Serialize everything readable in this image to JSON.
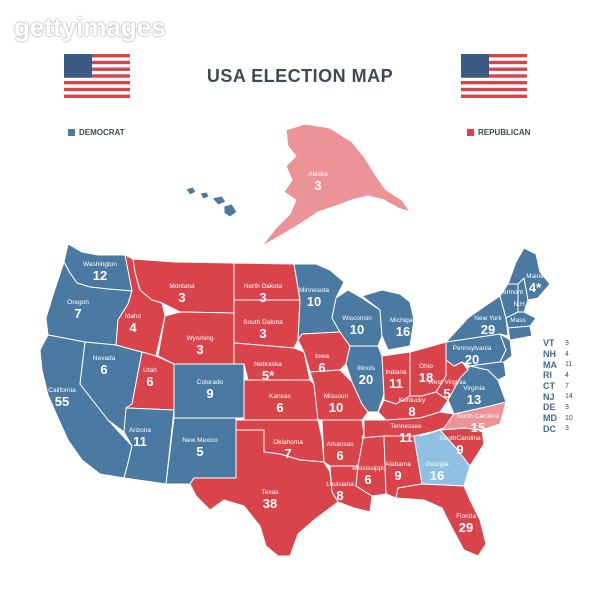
{
  "watermark": "gettyimages",
  "title": "USA ELECTION MAP",
  "legend": {
    "democrat": "DEMOCRAT",
    "republican": "REPUBLICAN"
  },
  "colors": {
    "democrat": "#4a79a1",
    "republican": "#d9444a",
    "lean_republican": "#eb9397",
    "lean_democrat": "#8fc1e3"
  },
  "states": {
    "washington": {
      "name": "Washington",
      "ev": "12",
      "party": "democrat"
    },
    "oregon": {
      "name": "Oregon",
      "ev": "7",
      "party": "democrat"
    },
    "california": {
      "name": "California",
      "ev": "55",
      "party": "democrat"
    },
    "nevada": {
      "name": "Nevada",
      "ev": "6",
      "party": "democrat"
    },
    "idaho": {
      "name": "Idaho",
      "ev": "4",
      "party": "republican"
    },
    "montana": {
      "name": "Montana",
      "ev": "3",
      "party": "republican"
    },
    "wyoming": {
      "name": "Wyoming",
      "ev": "3",
      "party": "republican"
    },
    "utah": {
      "name": "Utah",
      "ev": "6",
      "party": "republican"
    },
    "colorado": {
      "name": "Colorado",
      "ev": "9",
      "party": "democrat"
    },
    "arizona": {
      "name": "Arizona",
      "ev": "11",
      "party": "democrat"
    },
    "new_mexico": {
      "name": "New Mexico",
      "ev": "5",
      "party": "democrat"
    },
    "north_dakota": {
      "name": "North Dakota",
      "ev": "3",
      "party": "republican"
    },
    "south_dakota": {
      "name": "South Dakota",
      "ev": "3",
      "party": "republican"
    },
    "nebraska": {
      "name": "Nebraska",
      "ev": "5*",
      "party": "republican"
    },
    "kansas": {
      "name": "Kansas",
      "ev": "6",
      "party": "republican"
    },
    "oklahoma": {
      "name": "Oklahoma",
      "ev": "7",
      "party": "republican"
    },
    "texas": {
      "name": "Texas",
      "ev": "38",
      "party": "republican"
    },
    "minnesota": {
      "name": "Minnesota",
      "ev": "10",
      "party": "democrat"
    },
    "iowa": {
      "name": "Iowa",
      "ev": "6",
      "party": "republican"
    },
    "missouri": {
      "name": "Missouri",
      "ev": "10",
      "party": "republican"
    },
    "arkansas": {
      "name": "Arkansas",
      "ev": "6",
      "party": "republican"
    },
    "louisiana": {
      "name": "Louisiana",
      "ev": "8",
      "party": "republican"
    },
    "wisconsin": {
      "name": "Wisconsin",
      "ev": "10",
      "party": "democrat"
    },
    "illinois": {
      "name": "Illinois",
      "ev": "20",
      "party": "democrat"
    },
    "michigan": {
      "name": "Michigan",
      "ev": "16",
      "party": "democrat"
    },
    "indiana": {
      "name": "Indiana",
      "ev": "11",
      "party": "republican"
    },
    "ohio": {
      "name": "Ohio",
      "ev": "18",
      "party": "republican"
    },
    "kentucky": {
      "name": "Kentucky",
      "ev": "8",
      "party": "republican"
    },
    "tennessee": {
      "name": "Tennessee",
      "ev": "11",
      "party": "republican"
    },
    "mississippi": {
      "name": "Mississippi",
      "ev": "6",
      "party": "republican"
    },
    "alabama": {
      "name": "Alabama",
      "ev": "9",
      "party": "republican"
    },
    "georgia": {
      "name": "Georgia",
      "ev": "16",
      "party": "lean_democrat"
    },
    "florida": {
      "name": "Florida",
      "ev": "29",
      "party": "republican"
    },
    "south_carolina": {
      "name": "SouthCarolina",
      "ev": "9",
      "party": "republican"
    },
    "north_carolina": {
      "name": "North Carolina",
      "ev": "15",
      "party": "lean_republican"
    },
    "virginia": {
      "name": "Virginia",
      "ev": "13",
      "party": "democrat"
    },
    "west_virginia": {
      "name": "West Virginia",
      "ev": "5",
      "party": "republican"
    },
    "pennsylvania": {
      "name": "Pennsylvania",
      "ev": "20",
      "party": "democrat"
    },
    "new_york": {
      "name": "New York",
      "ev": "29",
      "party": "democrat"
    },
    "vermont": {
      "name": "Vermont",
      "ev": "",
      "party": "democrat"
    },
    "nh": {
      "name": "N.H.",
      "ev": "",
      "party": "democrat"
    },
    "mass": {
      "name": "Mass",
      "ev": "",
      "party": "democrat"
    },
    "maine": {
      "name": "Maine",
      "ev": "4*",
      "party": "democrat"
    },
    "alaska": {
      "name": "Alaska",
      "ev": "3",
      "party": "lean_republican"
    },
    "hawaii": {
      "name": "",
      "ev": "",
      "party": "democrat"
    }
  },
  "small_states": [
    {
      "abbr": "VT",
      "ev": "3"
    },
    {
      "abbr": "NH",
      "ev": "4"
    },
    {
      "abbr": "MA",
      "ev": "11"
    },
    {
      "abbr": "RI",
      "ev": "4"
    },
    {
      "abbr": "CT",
      "ev": "7"
    },
    {
      "abbr": "NJ",
      "ev": "14"
    },
    {
      "abbr": "DE",
      "ev": "3"
    },
    {
      "abbr": "MD",
      "ev": "10"
    },
    {
      "abbr": "DC",
      "ev": "3"
    }
  ]
}
